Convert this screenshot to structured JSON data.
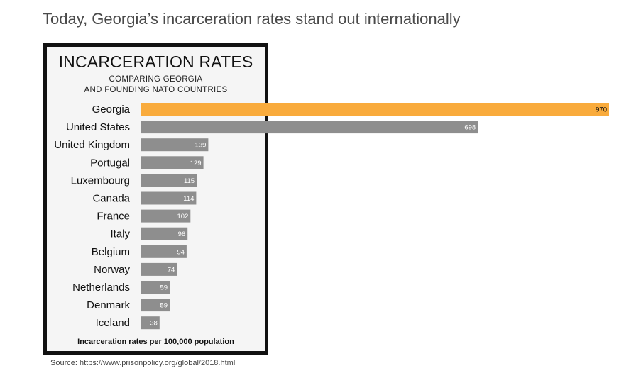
{
  "headline": "Today, Georgia’s incarceration rates stand out internationally",
  "source": "Source: https://www.prisonpolicy.org/global/2018.html",
  "colors": {
    "highlight": "#f9ab3c",
    "default": "#8e8e8e",
    "panel_bg": "#f5f5f5",
    "panel_border": "#111111"
  },
  "chart_data": {
    "type": "bar",
    "orientation": "horizontal",
    "title": "INCARCERATION RATES",
    "subtitle_lines": [
      "COMPARING GEORGIA",
      "AND FOUNDING NATO COUNTRIES"
    ],
    "xlabel": "Incarceration rates per 100,000 population",
    "ylabel": "",
    "xlim": [
      0,
      970
    ],
    "highlight": "Georgia",
    "categories": [
      "Georgia",
      "United States",
      "United Kingdom",
      "Portugal",
      "Luxembourg",
      "Canada",
      "France",
      "Italy",
      "Belgium",
      "Norway",
      "Netherlands",
      "Denmark",
      "Iceland"
    ],
    "values": [
      970,
      698,
      139,
      129,
      115,
      114,
      102,
      96,
      94,
      74,
      59,
      59,
      38
    ],
    "grid": false,
    "legend": "none"
  }
}
